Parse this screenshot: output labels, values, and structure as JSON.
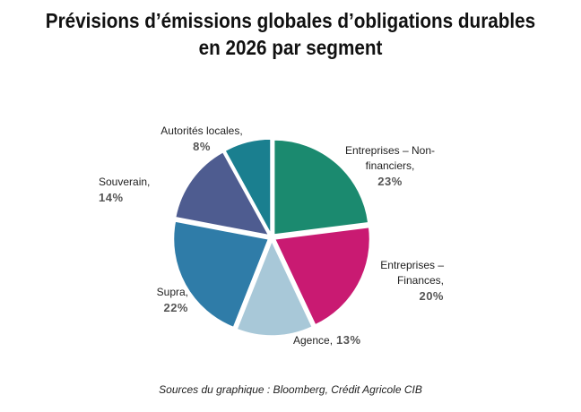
{
  "chart_data": {
    "type": "pie",
    "title": "Prévisions d’émissions globales d’obligations durables en 2026 par segment",
    "categories": [
      "Entreprises – Non-financiers,",
      "Entreprises – Finances,",
      "Agence,",
      "Supra,",
      "Souverain,",
      "Autorités locales,"
    ],
    "values": [
      23,
      20,
      13,
      22,
      14,
      8
    ],
    "value_labels": [
      "23%",
      "20%",
      "13%",
      "22%",
      "14%",
      "8%"
    ],
    "colors": [
      "#1b8a6f",
      "#c91a72",
      "#a8c8d8",
      "#2f7ca8",
      "#4e5c90",
      "#1a7f8f"
    ],
    "source": "Sources du graphique : Bloomberg, Crédit Agricole CIB"
  }
}
